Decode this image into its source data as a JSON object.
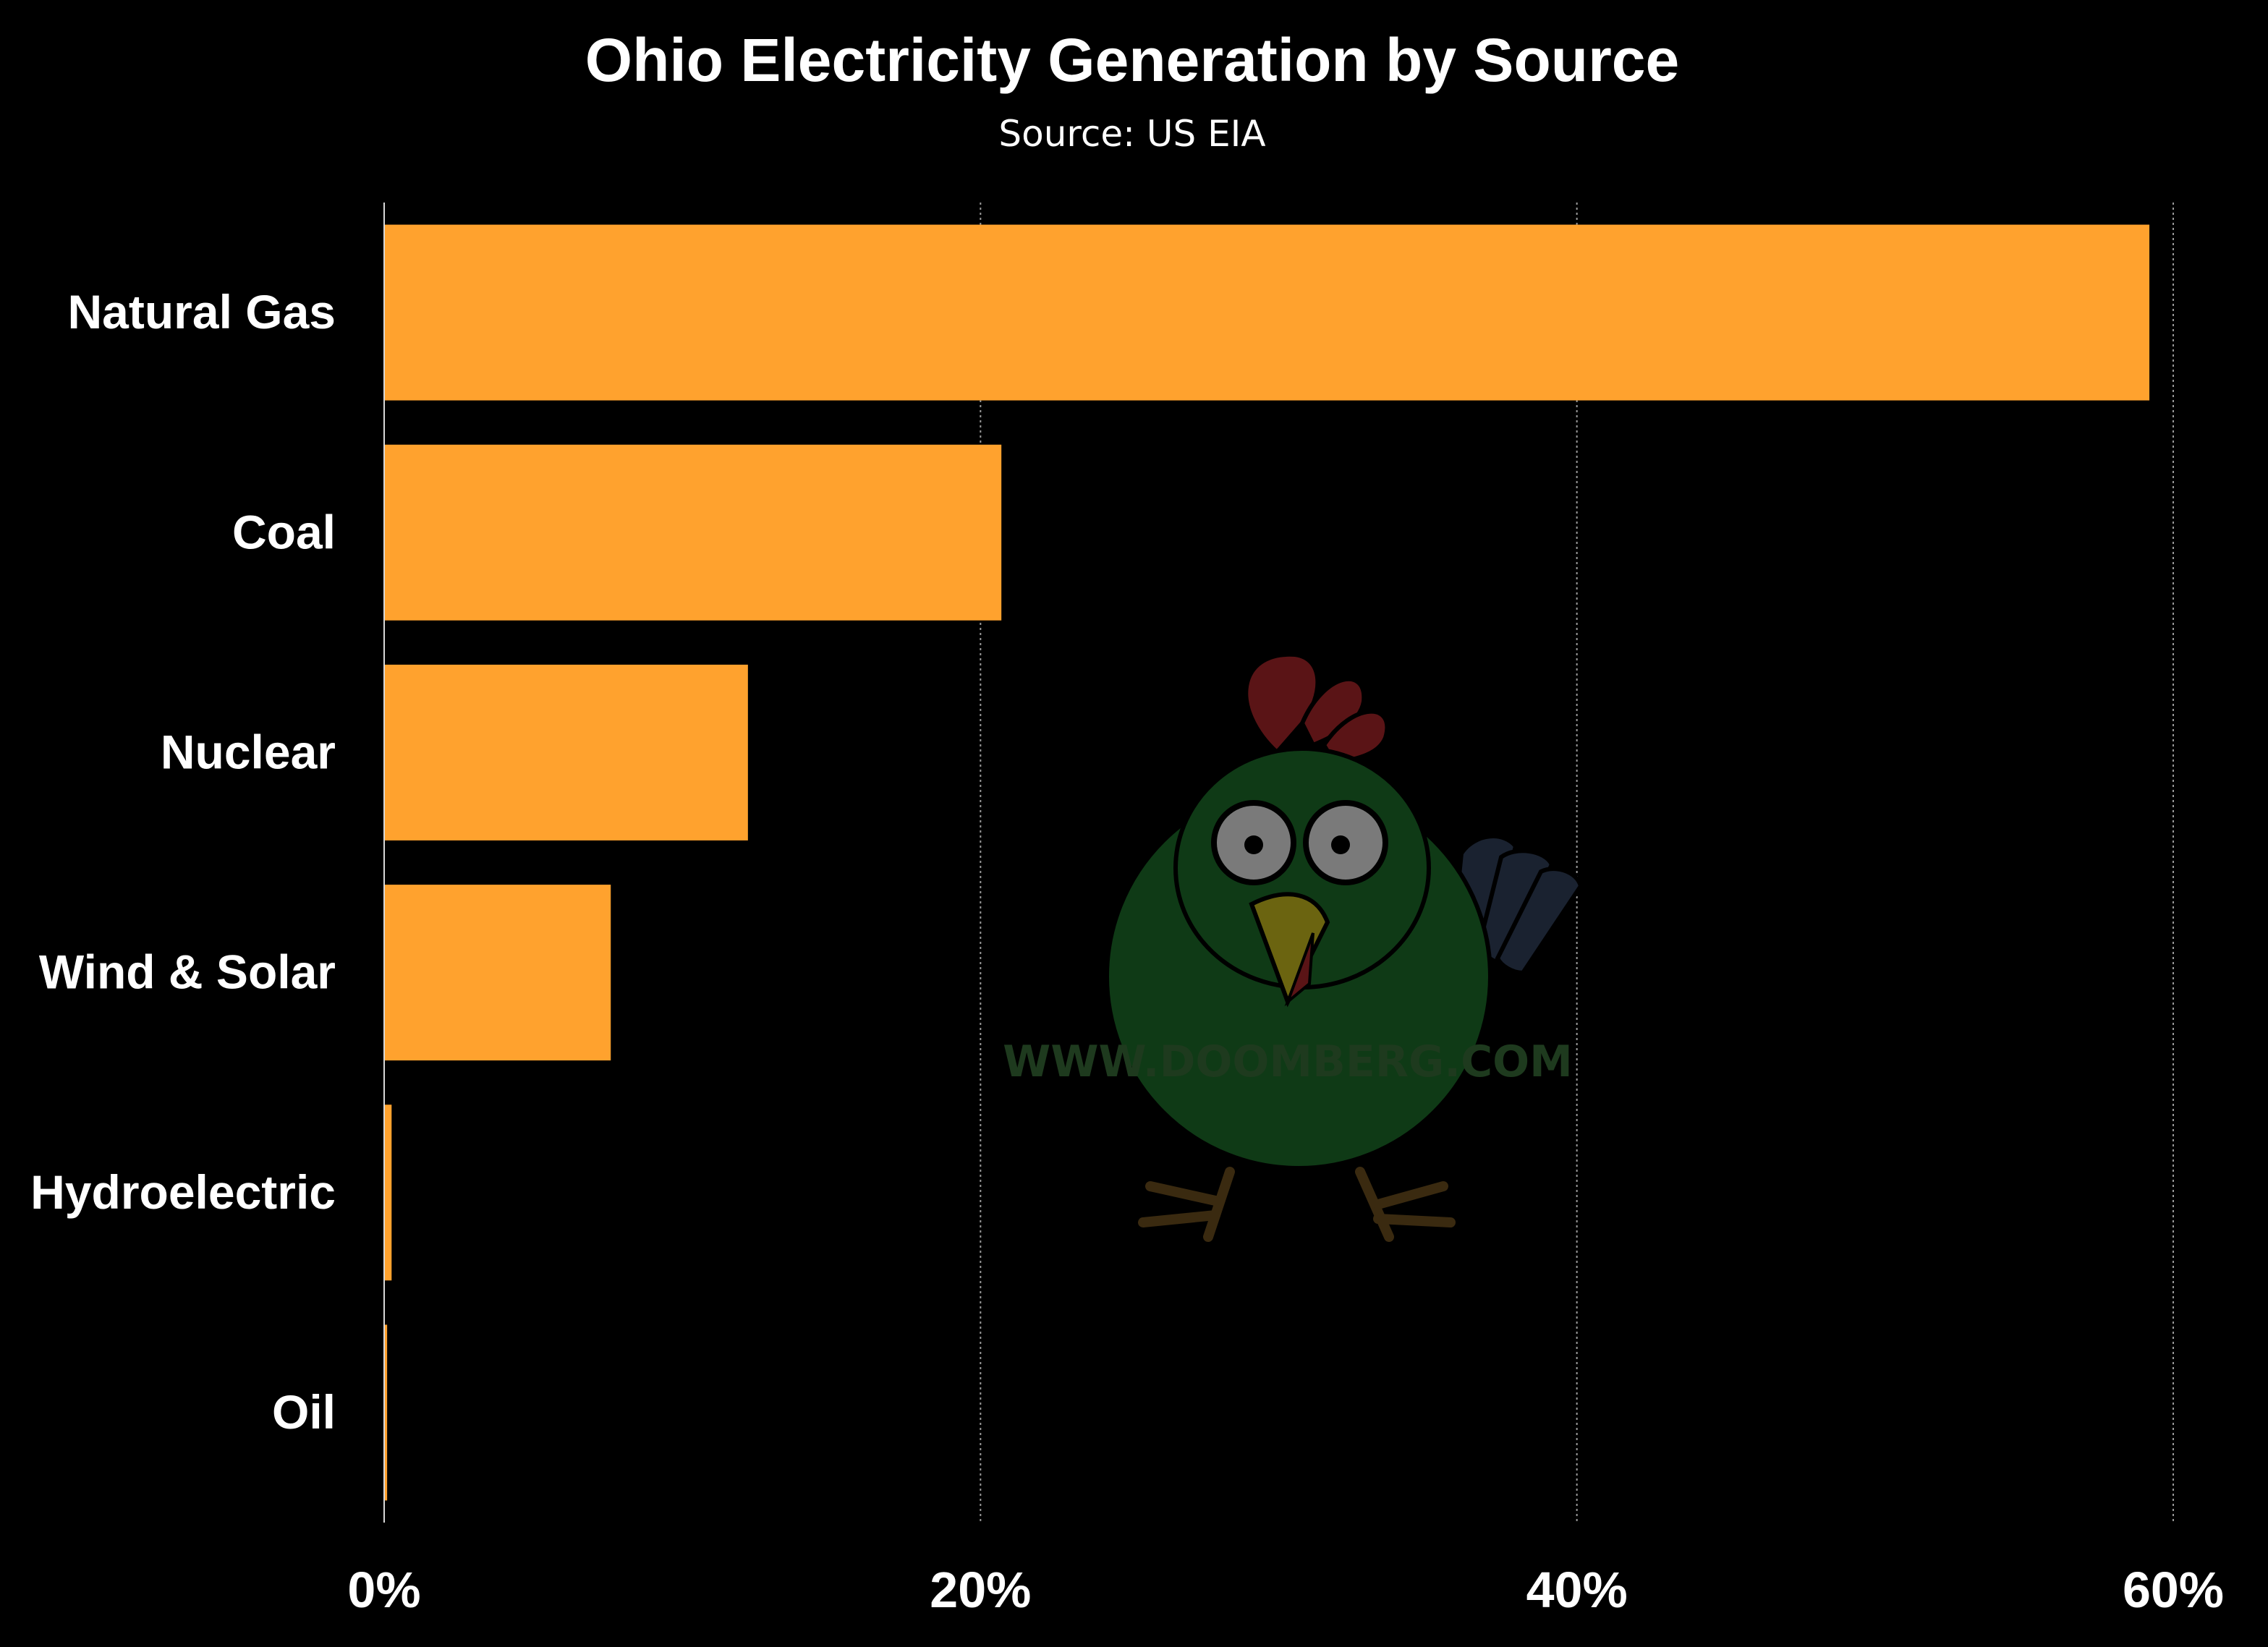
{
  "chart_data": {
    "type": "bar",
    "orientation": "horizontal",
    "title": "Ohio Electricity Generation by Source",
    "subtitle": "Source: US EIA",
    "categories": [
      "Natural Gas",
      "Coal",
      "Nuclear",
      "Wind & Solar",
      "Hydroelectric",
      "Oil"
    ],
    "values": [
      59.2,
      20.7,
      12.2,
      7.6,
      0.25,
      0.1
    ],
    "x_axis": {
      "min": 0,
      "max": 60,
      "ticks": [
        0,
        20,
        40,
        60
      ],
      "tick_labels": [
        "0%",
        "20%",
        "40%",
        "60%"
      ],
      "grid": true
    },
    "bar_color": "#ffa22e",
    "background_color": "#000000",
    "legend": "none"
  },
  "watermark": {
    "text": "WWW.DOOMBERG.COM",
    "icon": "chicken-mascot-icon"
  }
}
